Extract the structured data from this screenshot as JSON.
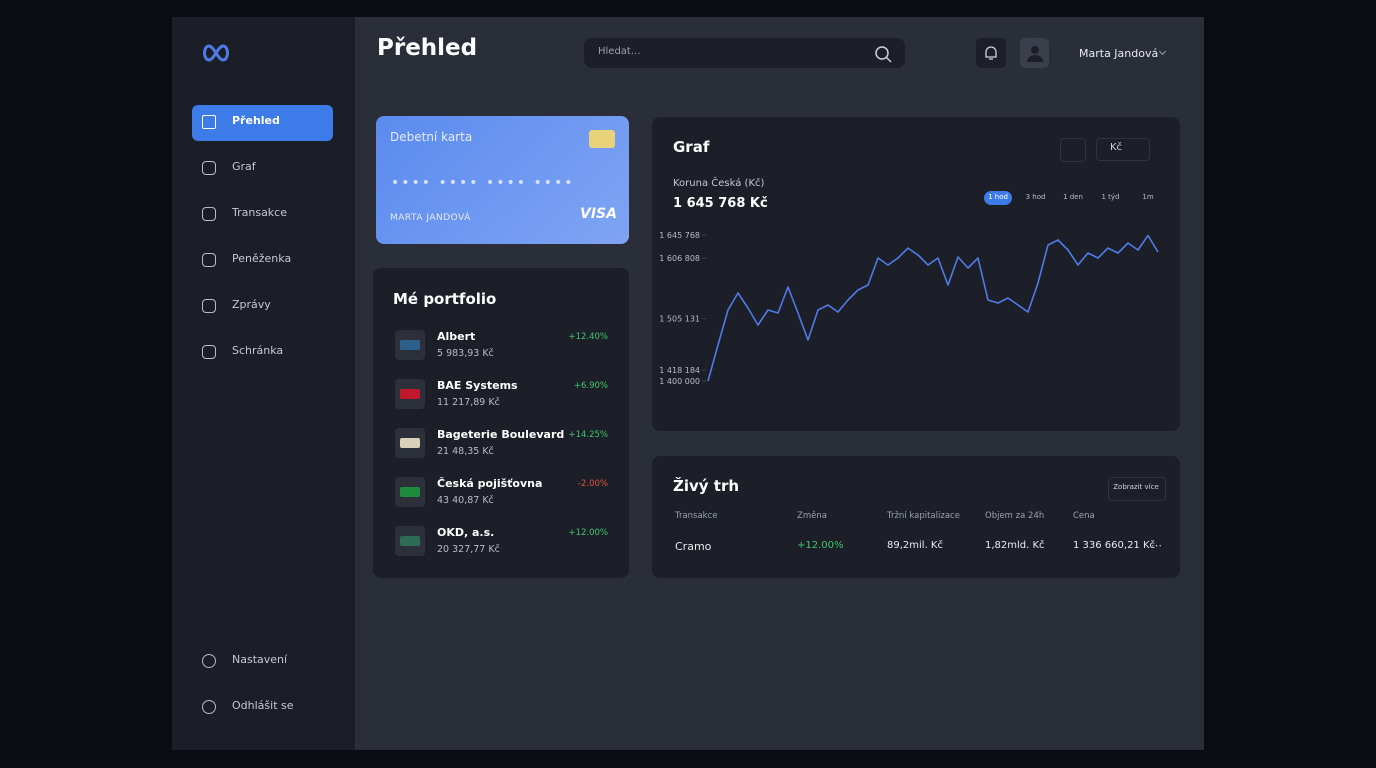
{
  "sidebar": {
    "items": [
      "Přehled",
      "Graf",
      "Transakce",
      "Peněženka",
      "Zprávy",
      "Schránka"
    ],
    "bottom_items": [
      "Nastavení",
      "Odhlášit se"
    ]
  },
  "header": {
    "title": "Přehled",
    "search_placeholder": "Hledat...",
    "user": "Marta Jandová"
  },
  "card": {
    "title": "Debetní karta",
    "holder": "MARTA JANDOVÁ",
    "brand": "VISA"
  },
  "portfolio": {
    "title": "Mé portfolio",
    "items": [
      {
        "name": "Albert",
        "value": "5 983,93 Kč",
        "change": "+12.40%"
      },
      {
        "name": "BAE Systems",
        "value": "11 217,89 Kč",
        "change": "+6.90%"
      },
      {
        "name": "Bageterie Boulevard",
        "value": "21 48,35 Kč",
        "change": "+14.25%"
      },
      {
        "name": "Česká pojišťovna",
        "value": "43 40,87 Kč",
        "change": "-2.00%"
      },
      {
        "name": "OKD, a.s.",
        "value": "20 327,77 Kč",
        "change": "+12.00%"
      }
    ]
  },
  "graph": {
    "title": "Graf",
    "currency": "Kč",
    "currency_name": "Koruna Česká (Kč)",
    "total": "1 645 768 Kč",
    "ranges": [
      "1 hod",
      "3 hod",
      "1 den",
      "1 týd",
      "1m"
    ]
  },
  "chart_data": {
    "type": "line",
    "color": "#4f7be8",
    "values": [
      1400000,
      1460600,
      1519500,
      1548100,
      1522900,
      1494200,
      1519500,
      1514400,
      1558200,
      1514400,
      1469000,
      1519500,
      1527900,
      1516100,
      1536300,
      1553200,
      1561600,
      1607000,
      1595200,
      1607000,
      1623800,
      1612100,
      1595200,
      1607000,
      1561600,
      1608700,
      1590200,
      1607000,
      1536300,
      1531300,
      1539700,
      1527900,
      1516100,
      1564900,
      1628900,
      1637300,
      1620500,
      1595200,
      1615400,
      1607000,
      1623800,
      1615400,
      1632300,
      1620500,
      1645000,
      1617100
    ],
    "ylim": [
      1400000,
      1645768
    ],
    "yticks": [
      {
        "value": 1645768,
        "label": "1 645 768"
      },
      {
        "value": 1606808,
        "label": "1 606 808"
      },
      {
        "value": 1505131,
        "label": "1 505 131"
      },
      {
        "value": 1418184,
        "label": "1 418 184"
      },
      {
        "value": 1400000,
        "label": "1 400 000"
      }
    ]
  },
  "market": {
    "title": "Živý trh",
    "more": "Zobrazit více",
    "columns": [
      "Transakce",
      "Změna",
      "Tržní kapitalizace",
      "Objem za 24h",
      "Cena"
    ],
    "rows": [
      [
        "Cramo",
        "+12.00%",
        "89,2mil. Kč",
        "1,82mld. Kč",
        "1 336 660,21 Kč"
      ]
    ]
  }
}
